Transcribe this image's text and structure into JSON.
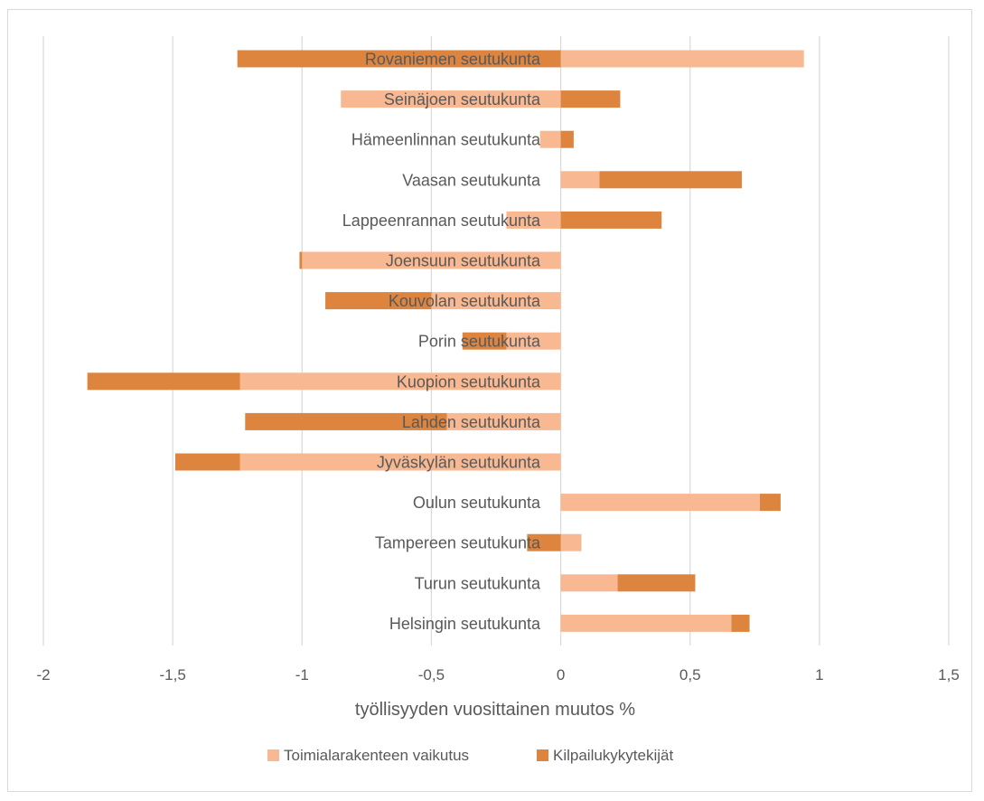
{
  "chart_data": {
    "type": "bar",
    "orientation": "horizontal",
    "stacked": true,
    "title": "",
    "xlabel": "työllisyyden vuosittainen muutos %",
    "ylabel": "",
    "xlim": [
      -2,
      1.5
    ],
    "x_ticks": [
      -2,
      -1.5,
      -1,
      -0.5,
      0,
      0.5,
      1,
      1.5
    ],
    "x_tick_labels": [
      "-2",
      "-1,5",
      "-1",
      "-0,5",
      "0",
      "0,5",
      "1",
      "1,5"
    ],
    "grid": true,
    "legend_position": "bottom",
    "categories": [
      "Rovaniemen seutukunta",
      "Seinäjoen seutukunta",
      "Hämeenlinnan seutukunta",
      "Vaasan seutukunta",
      "Lappeenrannan seutukunta",
      "Joensuun seutukunta",
      "Kouvolan seutukunta",
      "Porin seutukunta",
      "Kuopion seutukunta",
      "Lahden seutukunta",
      "Jyväskylän seutukunta",
      "Oulun seutukunta",
      "Tampereen seutukunta",
      "Turun seutukunta",
      "Helsingin seutukunta"
    ],
    "series": [
      {
        "name": "Toimialarakenteen vaikutus",
        "color": "#f8b891",
        "values": [
          0.94,
          -0.85,
          -0.08,
          0.15,
          -0.21,
          -1.0,
          -0.5,
          -0.21,
          -1.24,
          -0.44,
          -1.24,
          0.77,
          0.08,
          0.22,
          0.66
        ]
      },
      {
        "name": "Kilpailukykytekijät",
        "color": "#dd843f",
        "values": [
          -1.25,
          0.23,
          0.05,
          0.55,
          0.39,
          -0.01,
          -0.41,
          -0.17,
          -0.59,
          -0.78,
          -0.25,
          0.08,
          -0.13,
          0.3,
          0.07
        ]
      }
    ]
  }
}
